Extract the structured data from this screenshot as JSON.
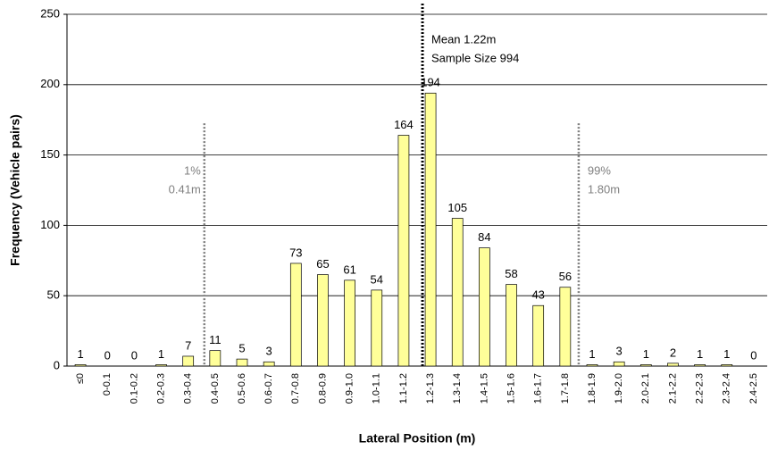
{
  "chart_data": {
    "type": "bar",
    "x_label": "Lateral Position (m)",
    "y_label": "Frequency (Vehicle pairs)",
    "categories": [
      "≤0",
      "0-0.1",
      "0.1-0.2",
      "0.2-0.3",
      "0.3-0.4",
      "0.4-0.5",
      "0.5-0.6",
      "0.6-0.7",
      "0.7-0.8",
      "0.8-0.9",
      "0.9-1.0",
      "1.0-1.1",
      "1.1-1.2",
      "1.2-1.3",
      "1.3-1.4",
      "1.4-1.5",
      "1.5-1.6",
      "1.6-1.7",
      "1.7-1.8",
      "1.8-1.9",
      "1.9-2.0",
      "2.0-2.1",
      "2.1-2.2",
      "2.2-2.3",
      "2.3-2.4",
      "2.4-2.5"
    ],
    "values": [
      1,
      0,
      0,
      1,
      7,
      11,
      5,
      3,
      73,
      65,
      61,
      54,
      164,
      194,
      105,
      84,
      58,
      43,
      56,
      1,
      3,
      1,
      2,
      1,
      1,
      0
    ],
    "color": "#ffff99",
    "xlim": [
      -0.1,
      2.5
    ],
    "ylim": [
      0,
      250
    ],
    "yticks": [
      0,
      50,
      100,
      150,
      200,
      250
    ],
    "grid": true,
    "reference_lines": [
      {
        "x": 1.22,
        "labels": [
          "Mean 1.22m",
          "Sample Size 994"
        ],
        "color": "#000000",
        "label_side": "right",
        "full_height": true
      },
      {
        "x": 0.41,
        "labels": [
          "1%",
          "0.41m"
        ],
        "color": "#808080",
        "label_side": "left",
        "full_height": false
      },
      {
        "x": 1.8,
        "labels": [
          "99%",
          "1.80m"
        ],
        "color": "#808080",
        "label_side": "right",
        "full_height": false
      }
    ]
  }
}
